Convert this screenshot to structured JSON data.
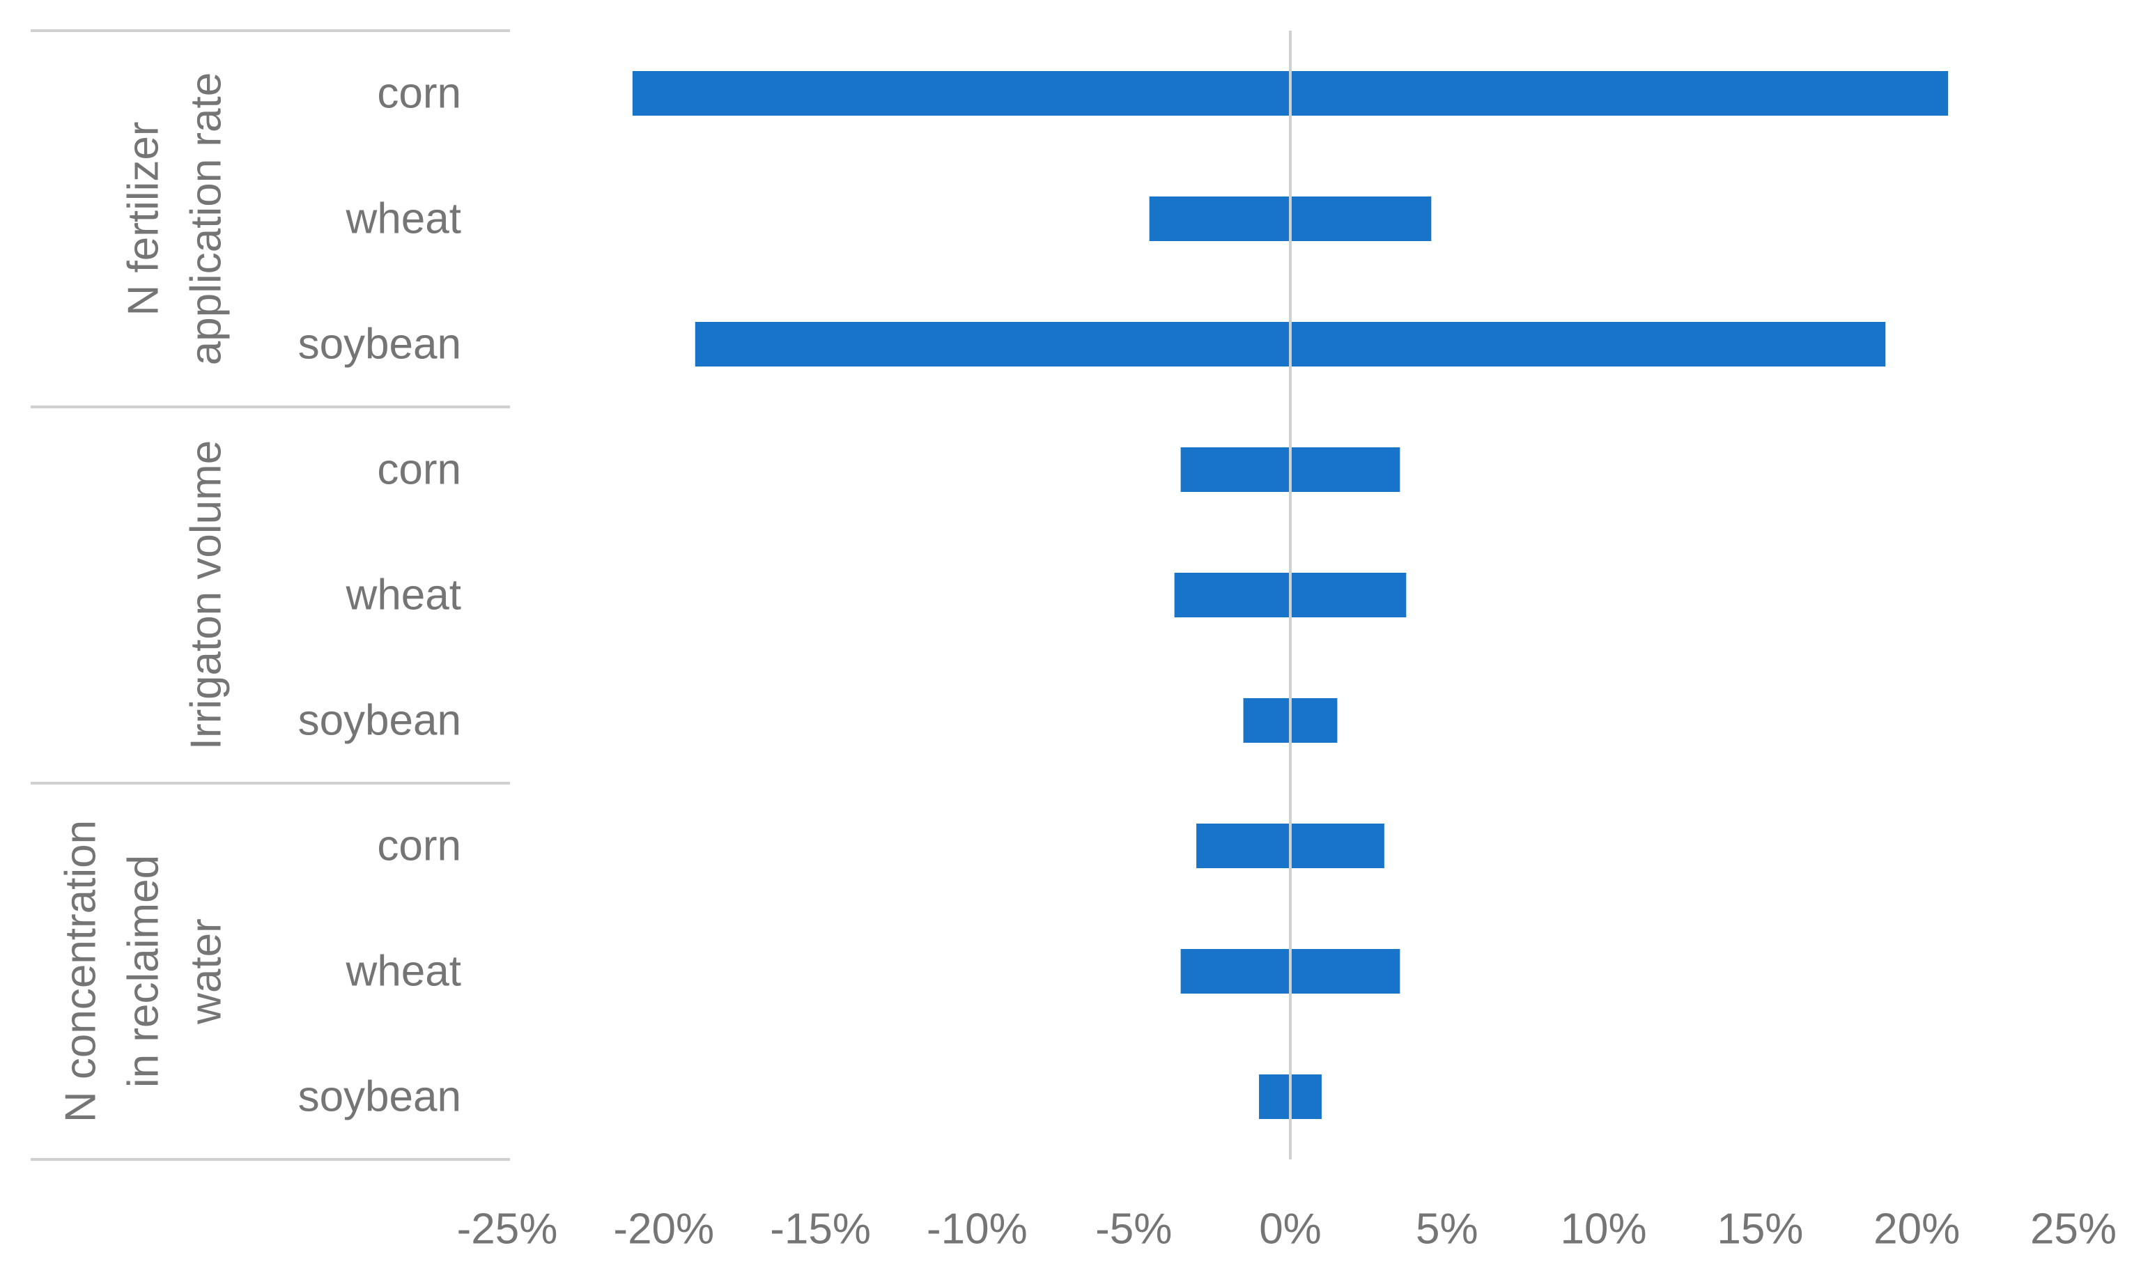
{
  "chart_data": {
    "type": "bar",
    "orientation": "horizontal",
    "style": "tornado",
    "bar_color": "#1874c8",
    "zero_line_color": "#d0d0d0",
    "text_color": "#757575",
    "xlim": [
      -0.25,
      0.25
    ],
    "x_ticks": [
      -0.25,
      -0.2,
      -0.15,
      -0.1,
      -0.05,
      0,
      0.05,
      0.1,
      0.15,
      0.2,
      0.25
    ],
    "x_tick_labels": [
      "-25%",
      "-20%",
      "-15%",
      "-10%",
      "-5%",
      "0%",
      "5%",
      "10%",
      "15%",
      "20%",
      "25%"
    ],
    "groups": [
      {
        "label_lines": [
          "N fertilizer",
          "application rate"
        ],
        "rows": [
          {
            "label": "corn",
            "low": -0.21,
            "high": 0.21
          },
          {
            "label": "wheat",
            "low": -0.045,
            "high": 0.045
          },
          {
            "label": "soybean",
            "low": -0.19,
            "high": 0.19
          }
        ]
      },
      {
        "label_lines": [
          "Irrigaton volume"
        ],
        "rows": [
          {
            "label": "corn",
            "low": -0.035,
            "high": 0.035
          },
          {
            "label": "wheat",
            "low": -0.037,
            "high": 0.037
          },
          {
            "label": "soybean",
            "low": -0.015,
            "high": 0.015
          }
        ]
      },
      {
        "label_lines": [
          "N concentration",
          "in reclaimed",
          "water"
        ],
        "rows": [
          {
            "label": "corn",
            "low": -0.03,
            "high": 0.03
          },
          {
            "label": "wheat",
            "low": -0.035,
            "high": 0.035
          },
          {
            "label": "soybean",
            "low": -0.01,
            "high": 0.01
          }
        ]
      }
    ]
  }
}
